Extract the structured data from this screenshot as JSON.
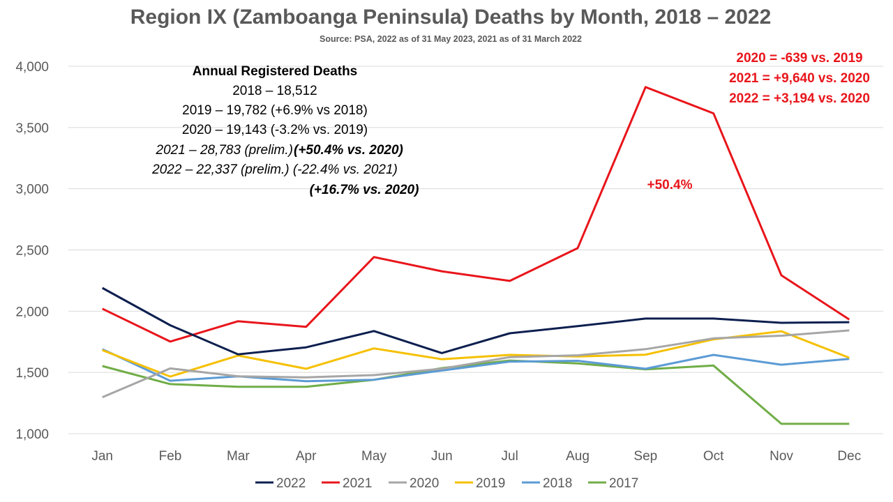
{
  "chart_data": {
    "type": "line",
    "title": "Region IX (Zamboanga Peninsula) Deaths by Month, 2018 – 2022",
    "subtitle": "Source: PSA, 2022 as of 31 May 2023, 2021 as of 31 March 2022",
    "xlabel": "",
    "ylabel": "",
    "categories": [
      "Jan",
      "Feb",
      "Mar",
      "Apr",
      "May",
      "Jun",
      "Jul",
      "Aug",
      "Sep",
      "Oct",
      "Nov",
      "Dec"
    ],
    "ylim": [
      1000,
      4000
    ],
    "yticks": [
      1000,
      1500,
      2000,
      2500,
      3000,
      3500,
      4000
    ],
    "ytick_labels": [
      "1,000",
      "1,500",
      "2,000",
      "2,500",
      "3,000",
      "3,500",
      "4,000"
    ],
    "grid": true,
    "legend_position": "bottom",
    "series": [
      {
        "name": "2022",
        "color": "#0d1f4f",
        "values": [
          2190,
          1885,
          1648,
          1705,
          1838,
          1658,
          1820,
          1878,
          1940,
          1940,
          1905,
          1910
        ]
      },
      {
        "name": "2021",
        "color": "#e8151b",
        "values": [
          2020,
          1752,
          1918,
          1872,
          2442,
          2326,
          2247,
          2515,
          3830,
          3615,
          2293,
          1932
        ]
      },
      {
        "name": "2020",
        "color": "#a6a6a6",
        "values": [
          1298,
          1533,
          1468,
          1460,
          1478,
          1530,
          1625,
          1640,
          1690,
          1778,
          1800,
          1843
        ]
      },
      {
        "name": "2019",
        "color": "#f5c000",
        "values": [
          1682,
          1466,
          1638,
          1530,
          1696,
          1608,
          1643,
          1630,
          1645,
          1770,
          1836,
          1620
        ]
      },
      {
        "name": "2018",
        "color": "#5b9bd5",
        "values": [
          1690,
          1432,
          1468,
          1428,
          1440,
          1516,
          1588,
          1595,
          1530,
          1643,
          1563,
          1610
        ]
      },
      {
        "name": "2017",
        "color": "#70ad47",
        "values": [
          1552,
          1405,
          1383,
          1383,
          1440,
          1535,
          1597,
          1574,
          1525,
          1556,
          1080,
          1080
        ]
      }
    ],
    "annotations": {
      "annual_header": "Annual Registered Deaths",
      "line_2018": "2018 – 18,512",
      "line_2019": "2019 – 19,782 (+6.9% vs 2018)",
      "line_2020": "2020 – 19,143 (-3.2% vs. 2019)",
      "line_2021_a": "2021 – 28,783 (prelim.)",
      "line_2021_b": "(+50.4% vs. 2020)",
      "line_2022": "2022 – 22,337 (prelim.) (-22.4% vs. 2021)",
      "line_2022_b": "(+16.7% vs. 2020)",
      "red_1": "2020 = -639 vs. 2019",
      "red_2": "2021 = +9,640 vs. 2020",
      "red_3": "2022 = +3,194 vs. 2020",
      "peak_label": "+50.4%"
    }
  }
}
